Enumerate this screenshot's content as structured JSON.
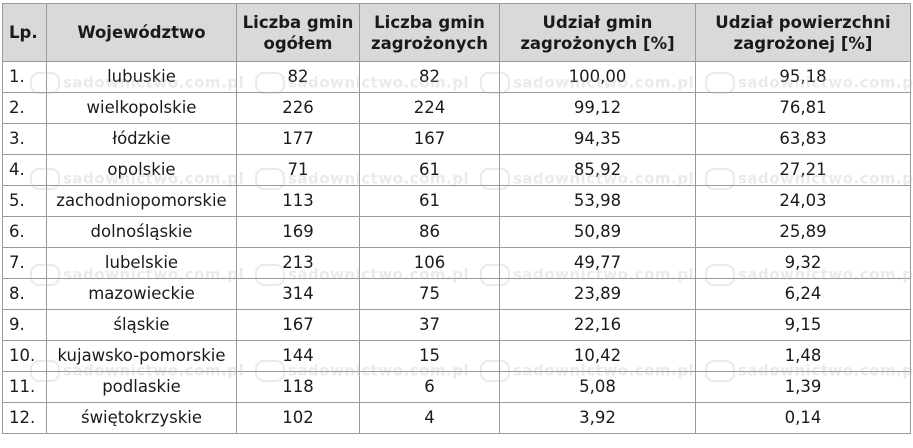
{
  "table": {
    "headers": {
      "lp": "Lp.",
      "voivodeship": "Województwo",
      "total_line1": "Liczba gmin",
      "total_line2": "ogółem",
      "threatened_line1": "Liczba gmin",
      "threatened_line2": "zagrożonych",
      "share_gmin_line1": "Udział gmin",
      "share_gmin_line2": "zagrożonych [%]",
      "share_area_line1": "Udział powierzchni",
      "share_area_line2": "zagrożonej [%]"
    },
    "rows": [
      {
        "lp": "1.",
        "name": "lubuskie",
        "total": "82",
        "threatened": "82",
        "share_gmin": "100,00",
        "share_area": "95,18"
      },
      {
        "lp": "2.",
        "name": "wielkopolskie",
        "total": "226",
        "threatened": "224",
        "share_gmin": "99,12",
        "share_area": "76,81"
      },
      {
        "lp": "3.",
        "name": "łódzkie",
        "total": "177",
        "threatened": "167",
        "share_gmin": "94,35",
        "share_area": "63,83"
      },
      {
        "lp": "4.",
        "name": "opolskie",
        "total": "71",
        "threatened": "61",
        "share_gmin": "85,92",
        "share_area": "27,21"
      },
      {
        "lp": "5.",
        "name": "zachodniopomorskie",
        "total": "113",
        "threatened": "61",
        "share_gmin": "53,98",
        "share_area": "24,03"
      },
      {
        "lp": "6.",
        "name": "dolnośląskie",
        "total": "169",
        "threatened": "86",
        "share_gmin": "50,89",
        "share_area": "25,89"
      },
      {
        "lp": "7.",
        "name": "lubelskie",
        "total": "213",
        "threatened": "106",
        "share_gmin": "49,77",
        "share_area": "9,32"
      },
      {
        "lp": "8.",
        "name": "mazowieckie",
        "total": "314",
        "threatened": "75",
        "share_gmin": "23,89",
        "share_area": "6,24"
      },
      {
        "lp": "9.",
        "name": "śląskie",
        "total": "167",
        "threatened": "37",
        "share_gmin": "22,16",
        "share_area": "9,15"
      },
      {
        "lp": "10.",
        "name": "kujawsko-pomorskie",
        "total": "144",
        "threatened": "15",
        "share_gmin": "10,42",
        "share_area": "1,48"
      },
      {
        "lp": "11.",
        "name": "podlaskie",
        "total": "118",
        "threatened": "6",
        "share_gmin": "5,08",
        "share_area": "1,39"
      },
      {
        "lp": "12.",
        "name": "świętokrzyskie",
        "total": "102",
        "threatened": "4",
        "share_gmin": "3,92",
        "share_area": "0,14"
      }
    ]
  },
  "watermark": {
    "text": "sadownictwo.com.pl"
  }
}
